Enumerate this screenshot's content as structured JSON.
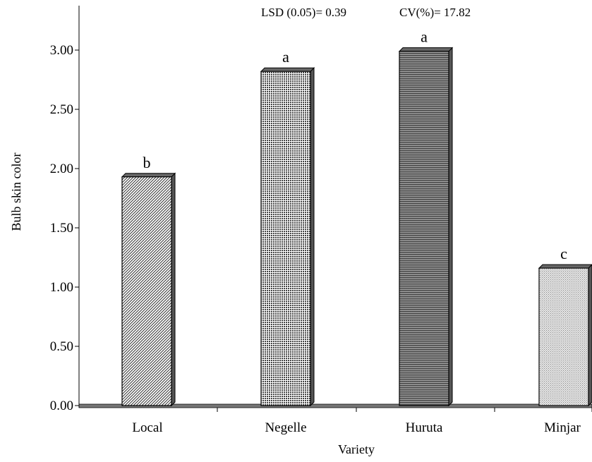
{
  "chart_data": {
    "type": "bar",
    "categories": [
      "Local",
      "Negelle",
      "Huruta",
      "Minjar"
    ],
    "values": [
      1.93,
      2.82,
      2.99,
      1.16
    ],
    "significance_letters": [
      "b",
      "a",
      "a",
      "c"
    ],
    "ylabel": "Bulb skin color",
    "xlabel": "Variety",
    "ylim": [
      0,
      3.0
    ],
    "yticks": [
      "0.00",
      "0.50",
      "1.00",
      "1.50",
      "2.00",
      "2.50",
      "3.00"
    ],
    "annotations": {
      "lsd": "LSD (0.05)= 0.39",
      "cv": "CV(%)= 17.82"
    },
    "bar_patterns": [
      "diagonal-hatch",
      "dots",
      "horizontal-lines",
      "fine-dots"
    ],
    "grid": false,
    "legend": "none"
  }
}
